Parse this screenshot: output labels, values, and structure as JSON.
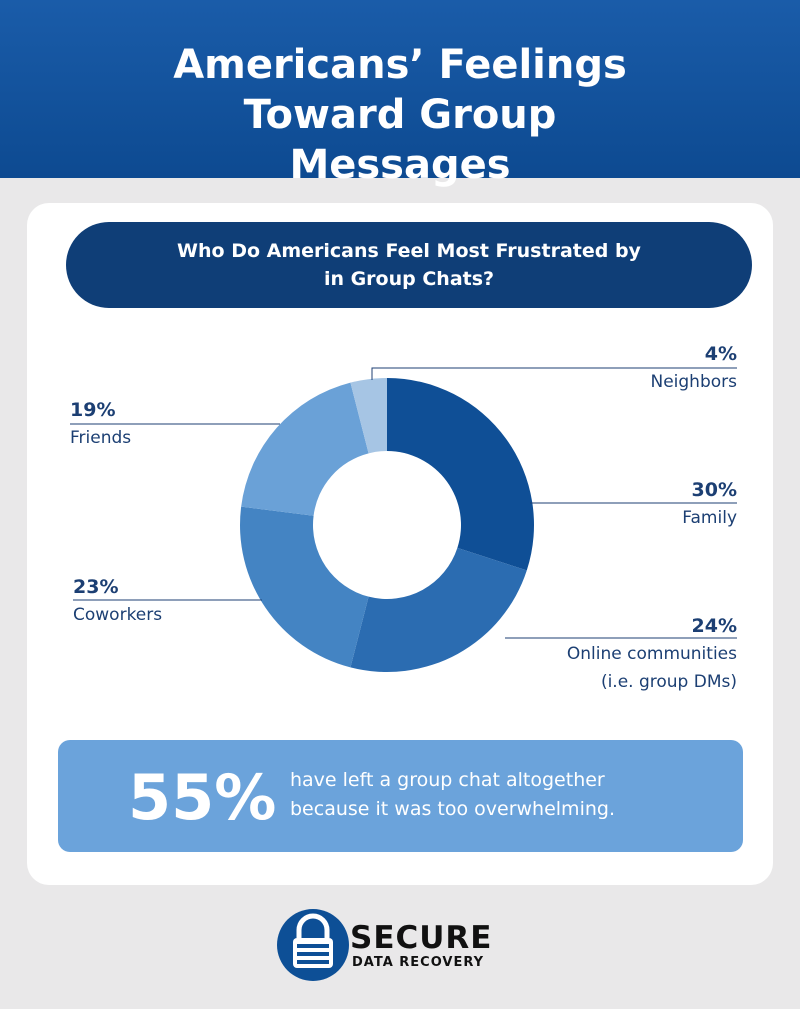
{
  "header": {
    "title": "Americans’ Feelings Toward Group Messages"
  },
  "chart_data": {
    "type": "donut",
    "title": "Who Do Americans Feel Most Frustrated by in Group Chats?",
    "categories": [
      "Family",
      "Online communities (i.e. group DMs)",
      "Coworkers",
      "Friends",
      "Neighbors"
    ],
    "values": [
      30,
      24,
      23,
      19,
      4
    ],
    "value_labels": [
      "30%",
      "24%",
      "23%",
      "19%",
      "4%"
    ],
    "colors": [
      "#0f4f96",
      "#2b6cb1",
      "#4484c3",
      "#6aa1d7",
      "#a6c5e4"
    ]
  },
  "callout": {
    "figure": "55%",
    "text": "have left a group chat altogether because it was too overwhelming."
  },
  "logo": {
    "name": "SECURE",
    "tagline": "DATA RECOVERY"
  }
}
